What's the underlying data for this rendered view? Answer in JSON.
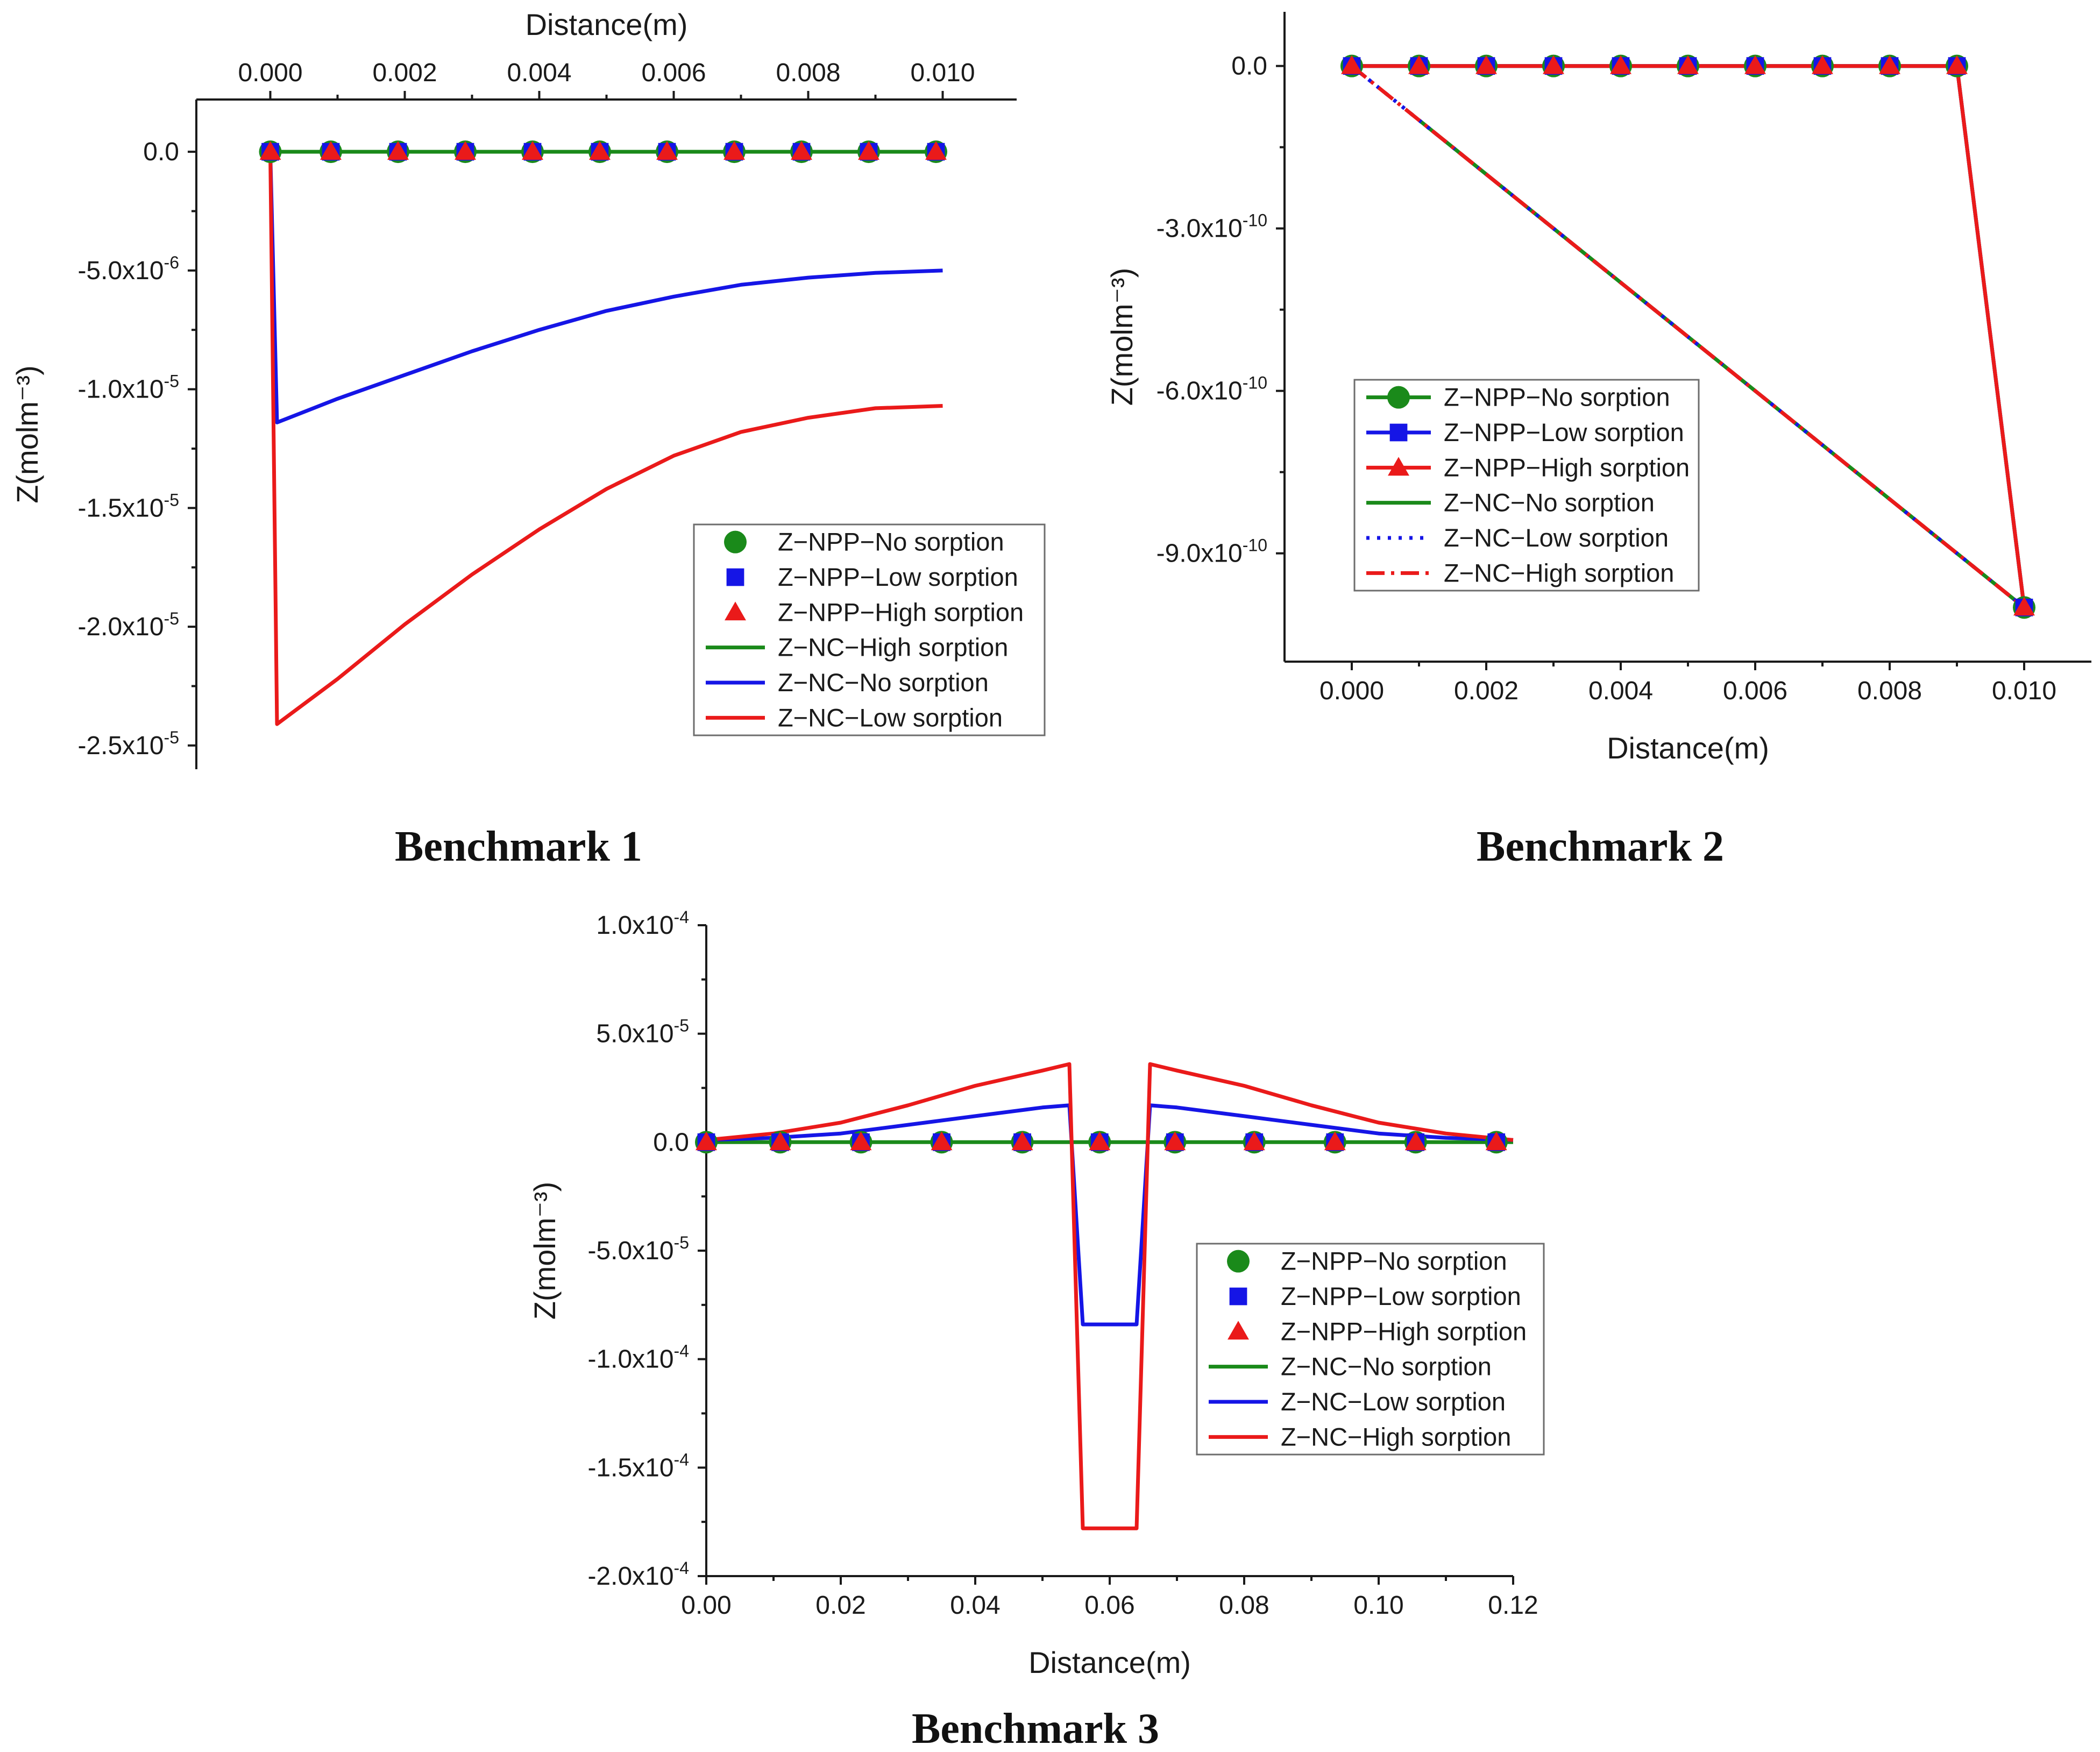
{
  "colors": {
    "green": "#1a8a1a",
    "blue": "#1515e6",
    "red": "#ea1a1a"
  },
  "captions": [
    "Benchmark 1",
    "Benchmark 2",
    "Benchmark 3"
  ],
  "chart_data": [
    {
      "type": "line",
      "title": "Benchmark 1",
      "xlabel": "Distance(m)",
      "ylabel": "Z(molm⁻³)",
      "x_axis_position": "top",
      "xlim": [
        -0.0011,
        0.0111
      ],
      "ylim": [
        -2.6e-05,
        2.2e-06
      ],
      "xticks": [
        0,
        0.002,
        0.004,
        0.006,
        0.008,
        0.01
      ],
      "xtick_labels": [
        "0.000",
        "0.002",
        "0.004",
        "0.006",
        "0.008",
        "0.010"
      ],
      "yticks": [
        0,
        -5e-06,
        -1e-05,
        -1.5e-05,
        -2e-05,
        -2.5e-05
      ],
      "ytick_labels": [
        "0.0",
        "-5.0x10",
        "-1.0x10",
        "-1.5x10",
        "-2.0x10",
        "-2.5x10"
      ],
      "ytick_exponents": [
        "",
        "-6",
        "-5",
        "-5",
        "-5",
        "-5"
      ],
      "legend_position": "bottom-right",
      "series": [
        {
          "name": "Z−NPP−No sorption",
          "style": "marker",
          "marker": "circle",
          "color": "#1a8a1a",
          "x": [
            0,
            0.0009,
            0.0019,
            0.0029,
            0.0039,
            0.0049,
            0.0059,
            0.0069,
            0.0079,
            0.0089,
            0.0099
          ],
          "y": [
            0,
            0,
            0,
            0,
            0,
            0,
            0,
            0,
            0,
            0,
            0
          ]
        },
        {
          "name": "Z−NPP−Low sorption",
          "style": "marker",
          "marker": "square",
          "color": "#1515e6",
          "x": [
            0,
            0.0009,
            0.0019,
            0.0029,
            0.0039,
            0.0049,
            0.0059,
            0.0069,
            0.0079,
            0.0089,
            0.0099
          ],
          "y": [
            0,
            0,
            0,
            0,
            0,
            0,
            0,
            0,
            0,
            0,
            0
          ]
        },
        {
          "name": "Z−NPP−High sorption",
          "style": "marker",
          "marker": "triangle",
          "color": "#ea1a1a",
          "x": [
            0,
            0.0009,
            0.0019,
            0.0029,
            0.0039,
            0.0049,
            0.0059,
            0.0069,
            0.0079,
            0.0089,
            0.0099
          ],
          "y": [
            0,
            0,
            0,
            0,
            0,
            0,
            0,
            0,
            0,
            0,
            0
          ]
        },
        {
          "name": "Z−NC−High sorption",
          "style": "line",
          "color": "#1a8a1a",
          "x": [
            0,
            0.01
          ],
          "y": [
            0,
            0
          ]
        },
        {
          "name": "Z−NC−No sorption",
          "style": "line",
          "color": "#1515e6",
          "x": [
            0,
            0.0001,
            0.001,
            0.002,
            0.003,
            0.004,
            0.005,
            0.006,
            0.007,
            0.008,
            0.009,
            0.01
          ],
          "y": [
            0,
            -1.14e-05,
            -1.04e-05,
            -9.4e-06,
            -8.4e-06,
            -7.5e-06,
            -6.7e-06,
            -6.1e-06,
            -5.6e-06,
            -5.3e-06,
            -5.1e-06,
            -5e-06
          ]
        },
        {
          "name": "Z−NC−Low sorption",
          "style": "line",
          "color": "#ea1a1a",
          "x": [
            0,
            0.0001,
            0.001,
            0.002,
            0.003,
            0.004,
            0.005,
            0.006,
            0.007,
            0.008,
            0.009,
            0.01
          ],
          "y": [
            0,
            -2.41e-05,
            -2.22e-05,
            -1.99e-05,
            -1.78e-05,
            -1.59e-05,
            -1.42e-05,
            -1.28e-05,
            -1.18e-05,
            -1.12e-05,
            -1.08e-05,
            -1.07e-05
          ]
        }
      ]
    },
    {
      "type": "line",
      "title": "Benchmark 2",
      "xlabel": "Distance(m)",
      "ylabel": "Z(molm⁻³)",
      "x_axis_position": "bottom",
      "xlim": [
        -0.001,
        0.011
      ],
      "ylim": [
        -1.1e-09,
        1e-10
      ],
      "xticks": [
        0,
        0.002,
        0.004,
        0.006,
        0.008,
        0.01
      ],
      "xtick_labels": [
        "0.000",
        "0.002",
        "0.004",
        "0.006",
        "0.008",
        "0.010"
      ],
      "yticks": [
        0,
        -3e-10,
        -6e-10,
        -9e-10
      ],
      "ytick_labels": [
        "0.0",
        "-3.0x10",
        "-6.0x10",
        "-9.0x10"
      ],
      "ytick_exponents": [
        "",
        "-10",
        "-10",
        "-10"
      ],
      "legend_position": "middle-left",
      "series": [
        {
          "name": "Z−NPP−No sorption",
          "style": "line+marker",
          "marker": "circle",
          "color": "#1a8a1a",
          "x": [
            0,
            0.001,
            0.002,
            0.003,
            0.004,
            0.005,
            0.006,
            0.007,
            0.008,
            0.009,
            0.01
          ],
          "y": [
            0,
            0,
            0,
            0,
            0,
            0,
            0,
            0,
            0,
            0,
            -1e-09
          ]
        },
        {
          "name": "Z−NPP−Low sorption",
          "style": "line+marker",
          "marker": "square",
          "color": "#1515e6",
          "x": [
            0,
            0.001,
            0.002,
            0.003,
            0.004,
            0.005,
            0.006,
            0.007,
            0.008,
            0.009,
            0.01
          ],
          "y": [
            0,
            0,
            0,
            0,
            0,
            0,
            0,
            0,
            0,
            0,
            -1e-09
          ]
        },
        {
          "name": "Z−NPP−High sorption",
          "style": "line+marker",
          "marker": "triangle",
          "color": "#ea1a1a",
          "x": [
            0,
            0.001,
            0.002,
            0.003,
            0.004,
            0.005,
            0.006,
            0.007,
            0.008,
            0.009,
            0.01
          ],
          "y": [
            0,
            0,
            0,
            0,
            0,
            0,
            0,
            0,
            0,
            0,
            -1e-09
          ]
        },
        {
          "name": "Z−NC−No sorption",
          "style": "line",
          "color": "#1a8a1a",
          "x": [
            0.001,
            0.01
          ],
          "y": [
            -1e-10,
            -1e-09
          ]
        },
        {
          "name": "Z−NC−Low sorption",
          "style": "dotted",
          "color": "#1515e6",
          "x": [
            0,
            0.01
          ],
          "y": [
            0,
            -1e-09
          ]
        },
        {
          "name": "Z−NC−High sorption",
          "style": "dashdot",
          "color": "#ea1a1a",
          "x": [
            0,
            0.01
          ],
          "y": [
            0,
            -1e-09
          ]
        }
      ]
    },
    {
      "type": "line",
      "title": "Benchmark 3",
      "xlabel": "Distance(m)",
      "ylabel": "Z(molm⁻³)",
      "x_axis_position": "bottom",
      "xlim": [
        0,
        0.12
      ],
      "ylim": [
        -0.0002,
        0.0001
      ],
      "xticks": [
        0,
        0.02,
        0.04,
        0.06,
        0.08,
        0.1,
        0.12
      ],
      "xtick_labels": [
        "0.00",
        "0.02",
        "0.04",
        "0.06",
        "0.08",
        "0.10",
        "0.12"
      ],
      "yticks": [
        0.0001,
        5e-05,
        0,
        -5e-05,
        -0.0001,
        -0.00015,
        -0.0002
      ],
      "ytick_labels": [
        "1.0x10",
        "5.0x10",
        "0.0",
        "-5.0x10",
        "-1.0x10",
        "-1.5x10",
        "-2.0x10"
      ],
      "ytick_exponents": [
        "-4",
        "-5",
        "",
        "-5",
        "-4",
        "-4",
        "-4"
      ],
      "legend_position": "bottom-right",
      "series": [
        {
          "name": "Z−NPP−No sorption",
          "style": "marker",
          "marker": "circle",
          "color": "#1a8a1a",
          "x": [
            0,
            0.011,
            0.023,
            0.035,
            0.047,
            0.0585,
            0.0697,
            0.0815,
            0.0935,
            0.1055,
            0.1175
          ],
          "y": [
            0,
            0,
            0,
            0,
            0,
            0,
            0,
            0,
            0,
            0,
            0
          ]
        },
        {
          "name": "Z−NPP−Low sorption",
          "style": "marker",
          "marker": "square",
          "color": "#1515e6",
          "x": [
            0,
            0.011,
            0.023,
            0.035,
            0.047,
            0.0585,
            0.0697,
            0.0815,
            0.0935,
            0.1055,
            0.1175
          ],
          "y": [
            0,
            0,
            0,
            0,
            0,
            0,
            0,
            0,
            0,
            0,
            0
          ]
        },
        {
          "name": "Z−NPP−High sorption",
          "style": "marker",
          "marker": "triangle",
          "color": "#ea1a1a",
          "x": [
            0,
            0.011,
            0.023,
            0.035,
            0.047,
            0.0585,
            0.0697,
            0.0815,
            0.0935,
            0.1055,
            0.1175
          ],
          "y": [
            0,
            0,
            0,
            0,
            0,
            0,
            0,
            0,
            0,
            0,
            0
          ]
        },
        {
          "name": "Z−NC−No sorption",
          "style": "line",
          "color": "#1a8a1a",
          "x": [
            0,
            0.12
          ],
          "y": [
            0,
            0
          ]
        },
        {
          "name": "Z−NC−Low sorption",
          "style": "line",
          "color": "#1515e6",
          "x": [
            0,
            0.01,
            0.02,
            0.03,
            0.04,
            0.05,
            0.054,
            0.056,
            0.064,
            0.066,
            0.07,
            0.08,
            0.09,
            0.1,
            0.11,
            0.12
          ],
          "y": [
            1e-06,
            2e-06,
            4e-06,
            8e-06,
            1.2e-05,
            1.6e-05,
            1.7e-05,
            -8.4e-05,
            -8.4e-05,
            1.7e-05,
            1.6e-05,
            1.2e-05,
            8e-06,
            4e-06,
            2e-06,
            1e-06
          ]
        },
        {
          "name": "Z−NC−High sorption",
          "style": "line",
          "color": "#ea1a1a",
          "x": [
            0,
            0.01,
            0.02,
            0.03,
            0.04,
            0.05,
            0.054,
            0.056,
            0.064,
            0.066,
            0.07,
            0.08,
            0.09,
            0.1,
            0.11,
            0.12
          ],
          "y": [
            1e-06,
            4e-06,
            9e-06,
            1.7e-05,
            2.6e-05,
            3.3e-05,
            3.6e-05,
            -0.000178,
            -0.000178,
            3.6e-05,
            3.3e-05,
            2.6e-05,
            1.7e-05,
            9e-06,
            4e-06,
            1e-06
          ]
        }
      ]
    }
  ]
}
